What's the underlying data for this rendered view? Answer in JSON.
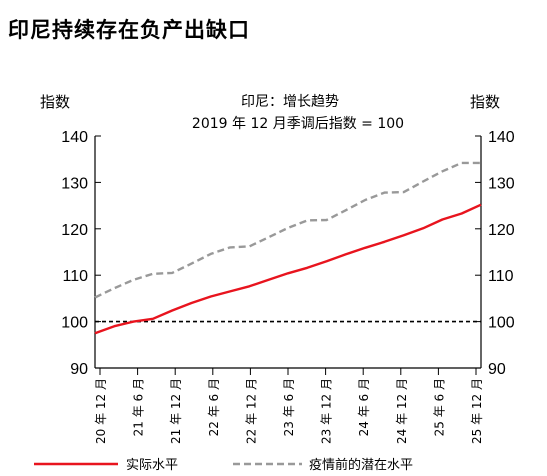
{
  "heading": "印尼持续存在负产出缺口",
  "chart_data": {
    "type": "line",
    "title": "印尼：增长趋势",
    "subtitle": "2019 年 12 月季调后指数 = 100",
    "y_left_label": "指数",
    "y_right_label": "指数",
    "ylim": [
      90,
      140
    ],
    "yticks": [
      90,
      100,
      110,
      120,
      130,
      140
    ],
    "x_tick_labels": [
      "20 年 12 月",
      "21 年 6 月",
      "21 年 12 月",
      "22 年 6 月",
      "22 年 12 月",
      "23 年 6 月",
      "23 年 12 月",
      "24 年 6 月",
      "24 年 12 月",
      "25 年 6 月",
      "25 年 12 月"
    ],
    "reference_line": 100,
    "series": [
      {
        "name": "实际水平",
        "color": "#e8141e",
        "style": "solid",
        "values": [
          97.5,
          99.0,
          100.0,
          100.6,
          102.4,
          104.0,
          105.4,
          106.5,
          107.6,
          109.0,
          110.4,
          111.6,
          113.0,
          114.5,
          115.9,
          117.2,
          118.6,
          120.1,
          122.0,
          123.3,
          125.2
        ]
      },
      {
        "name": "疫情前的潜在水平",
        "color": "#999999",
        "style": "dashed",
        "values": [
          105.2,
          107.2,
          109.0,
          110.3,
          110.5,
          112.5,
          114.6,
          116.0,
          116.2,
          118.2,
          120.2,
          121.8,
          121.9,
          124.0,
          126.2,
          127.8,
          127.9,
          130.2,
          132.4,
          134.2,
          134.2
        ]
      }
    ],
    "legend_position": "bottom"
  }
}
